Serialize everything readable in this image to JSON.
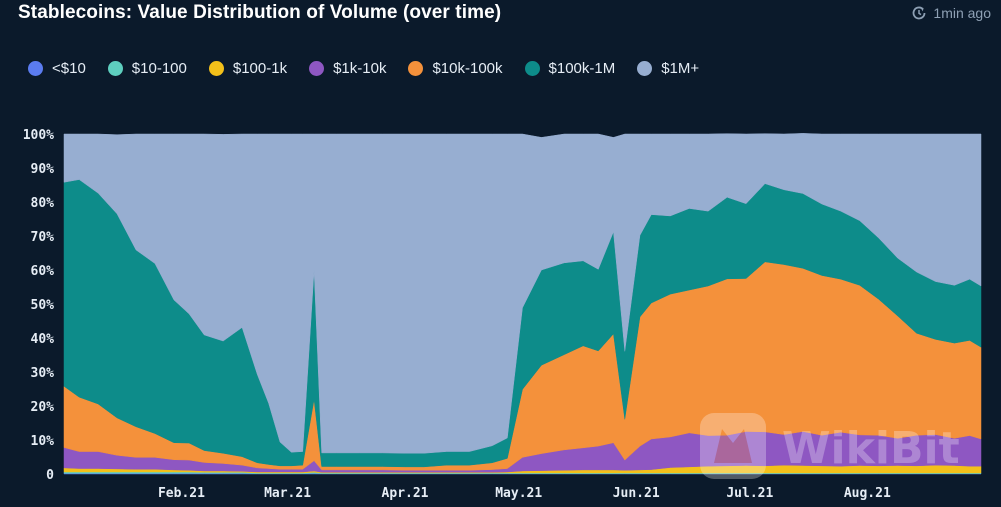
{
  "title": "Stablecoins: Value Distribution of Volume (over time)",
  "updated": "1min ago",
  "watermark": "WikiBit",
  "icons": {
    "refresh": "refresh-clock-icon",
    "watermark": "wikibit-logo-icon"
  },
  "chart_data": {
    "type": "area",
    "stacked": true,
    "normalized": true,
    "x_axis": "date",
    "x_start": "2021-01-01",
    "x_end": "2021-08-31",
    "xticks": [
      {
        "label": "Feb.21",
        "date": "2021-02-01"
      },
      {
        "label": "Mar.21",
        "date": "2021-03-01"
      },
      {
        "label": "Apr.21",
        "date": "2021-04-01"
      },
      {
        "label": "May.21",
        "date": "2021-05-01"
      },
      {
        "label": "Jun.21",
        "date": "2021-06-01"
      },
      {
        "label": "Jul.21",
        "date": "2021-07-01"
      },
      {
        "label": "Aug.21",
        "date": "2021-08-01"
      }
    ],
    "yticks": [
      "0",
      "10%",
      "20%",
      "30%",
      "40%",
      "50%",
      "60%",
      "70%",
      "80%",
      "90%",
      "100%"
    ],
    "ylim": [
      0,
      100
    ],
    "legend_position": "top-left",
    "x": [
      "2021-01-01",
      "2021-01-05",
      "2021-01-10",
      "2021-01-15",
      "2021-01-20",
      "2021-01-25",
      "2021-01-30",
      "2021-02-03",
      "2021-02-07",
      "2021-02-12",
      "2021-02-17",
      "2021-02-21",
      "2021-02-24",
      "2021-02-27",
      "2021-03-02",
      "2021-03-05",
      "2021-03-08",
      "2021-03-10",
      "2021-03-14",
      "2021-03-20",
      "2021-03-26",
      "2021-04-01",
      "2021-04-06",
      "2021-04-12",
      "2021-04-18",
      "2021-04-24",
      "2021-04-28",
      "2021-05-02",
      "2021-05-07",
      "2021-05-13",
      "2021-05-18",
      "2021-05-22",
      "2021-05-26",
      "2021-05-29",
      "2021-06-02",
      "2021-06-05",
      "2021-06-10",
      "2021-06-15",
      "2021-06-20",
      "2021-06-25",
      "2021-06-30",
      "2021-07-05",
      "2021-07-10",
      "2021-07-15",
      "2021-07-20",
      "2021-07-25",
      "2021-07-30",
      "2021-08-04",
      "2021-08-09",
      "2021-08-14",
      "2021-08-19",
      "2021-08-24",
      "2021-08-28",
      "2021-08-31"
    ],
    "series": [
      {
        "name": "<$10",
        "color": "#5b7cf0",
        "values": [
          0.2,
          0.2,
          0.2,
          0.2,
          0.2,
          0.2,
          0.2,
          0.2,
          0.2,
          0.2,
          0.2,
          0.1,
          0.1,
          0.1,
          0.1,
          0.1,
          0.2,
          0.1,
          0.1,
          0.1,
          0.1,
          0.1,
          0.1,
          0.1,
          0.1,
          0.1,
          0.1,
          0.1,
          0.1,
          0.1,
          0.1,
          0.1,
          0.1,
          0.1,
          0.1,
          0.1,
          0.1,
          0.1,
          0.1,
          0.1,
          0.1,
          0.1,
          0.1,
          0.1,
          0.1,
          0.1,
          0.1,
          0.1,
          0.1,
          0.1,
          0.1,
          0.1,
          0.1,
          0.1
        ]
      },
      {
        "name": "$10-100",
        "color": "#5ecfbf",
        "values": [
          0.4,
          0.4,
          0.4,
          0.4,
          0.4,
          0.4,
          0.4,
          0.4,
          0.3,
          0.3,
          0.3,
          0.2,
          0.2,
          0.2,
          0.2,
          0.2,
          0.3,
          0.2,
          0.2,
          0.2,
          0.2,
          0.2,
          0.2,
          0.2,
          0.2,
          0.2,
          0.2,
          0.2,
          0.2,
          0.2,
          0.2,
          0.2,
          0.2,
          0.2,
          0.2,
          0.2,
          0.2,
          0.2,
          0.2,
          0.2,
          0.2,
          0.2,
          0.2,
          0.2,
          0.2,
          0.2,
          0.2,
          0.2,
          0.2,
          0.2,
          0.2,
          0.2,
          0.2,
          0.2
        ]
      },
      {
        "name": "$100-1k",
        "color": "#f3c01a",
        "values": [
          1.2,
          1.0,
          1.0,
          0.9,
          0.8,
          0.8,
          0.6,
          0.5,
          0.4,
          0.4,
          0.3,
          0.3,
          0.3,
          0.3,
          0.3,
          0.3,
          0.4,
          0.2,
          0.2,
          0.2,
          0.2,
          0.2,
          0.2,
          0.2,
          0.2,
          0.2,
          0.3,
          0.6,
          0.7,
          0.8,
          0.9,
          0.9,
          0.9,
          0.8,
          0.9,
          1.0,
          1.6,
          1.8,
          2.0,
          2.1,
          2.2,
          2.1,
          2.3,
          2.2,
          2.1,
          2.0,
          2.2,
          2.1,
          2.2,
          2.1,
          2.3,
          2.2,
          2.0,
          2.0
        ]
      },
      {
        "name": "$1k-10k",
        "color": "#8e57c2",
        "values": [
          6,
          5,
          5,
          4,
          3.5,
          3.5,
          3,
          3,
          2.5,
          2.2,
          1.8,
          1.2,
          1,
          0.8,
          0.8,
          0.8,
          3,
          0.7,
          0.7,
          0.7,
          0.7,
          0.6,
          0.6,
          0.6,
          0.6,
          0.8,
          1,
          4,
          5,
          6,
          6.5,
          7,
          8,
          3,
          7,
          9,
          9,
          10,
          9,
          9,
          10,
          10,
          9,
          10,
          9,
          10,
          9,
          9,
          8,
          9,
          9,
          8,
          9,
          8
        ]
      },
      {
        "name": "$10k-100k",
        "color": "#f4913b",
        "values": [
          18,
          16,
          14,
          11,
          9,
          7,
          5,
          5,
          3.5,
          3,
          2.5,
          1.5,
          1.2,
          1,
          1,
          1.2,
          18,
          1,
          1,
          1,
          1,
          1,
          1,
          1.5,
          1.5,
          2,
          3,
          20,
          26,
          28,
          30,
          28,
          32,
          12,
          38,
          40,
          42,
          42,
          44,
          46,
          45,
          50,
          50,
          48,
          47,
          45,
          44,
          40,
          36,
          30,
          28,
          28,
          28,
          27
        ]
      },
      {
        "name": "$100k-1M",
        "color": "#0d8c8a",
        "values": [
          60,
          64,
          62,
          60,
          52,
          50,
          42,
          38,
          34,
          33,
          38,
          26,
          18,
          7,
          4,
          4,
          38,
          4,
          4,
          4,
          4,
          4,
          4,
          4,
          4,
          5,
          6,
          24,
          28,
          27,
          25,
          24,
          30,
          20,
          24,
          26,
          23,
          24,
          22,
          24,
          22,
          23,
          22,
          22,
          21,
          20,
          19,
          18,
          17,
          18,
          17,
          17,
          18,
          18
        ]
      },
      {
        "name": "$1M+",
        "color": "#97aed1",
        "values": [
          14.2,
          13.4,
          17.4,
          23.3,
          34.1,
          38.1,
          48.8,
          52.9,
          59.1,
          60.8,
          56.9,
          70.7,
          79.2,
          90.6,
          93.6,
          93.4,
          40.1,
          93.8,
          93.8,
          93.8,
          93.8,
          93.9,
          93.9,
          93.4,
          93.4,
          91.7,
          89.4,
          51.1,
          39.0,
          37.9,
          37.3,
          39.8,
          27.8,
          63.9,
          29.8,
          23.7,
          24.1,
          21.9,
          22.7,
          18.7,
          20.5,
          14.7,
          16.4,
          17.7,
          20.6,
          22.7,
          25.5,
          30.6,
          36.5,
          40.6,
          43.4,
          44.5,
          42.7,
          44.7
        ]
      }
    ]
  }
}
